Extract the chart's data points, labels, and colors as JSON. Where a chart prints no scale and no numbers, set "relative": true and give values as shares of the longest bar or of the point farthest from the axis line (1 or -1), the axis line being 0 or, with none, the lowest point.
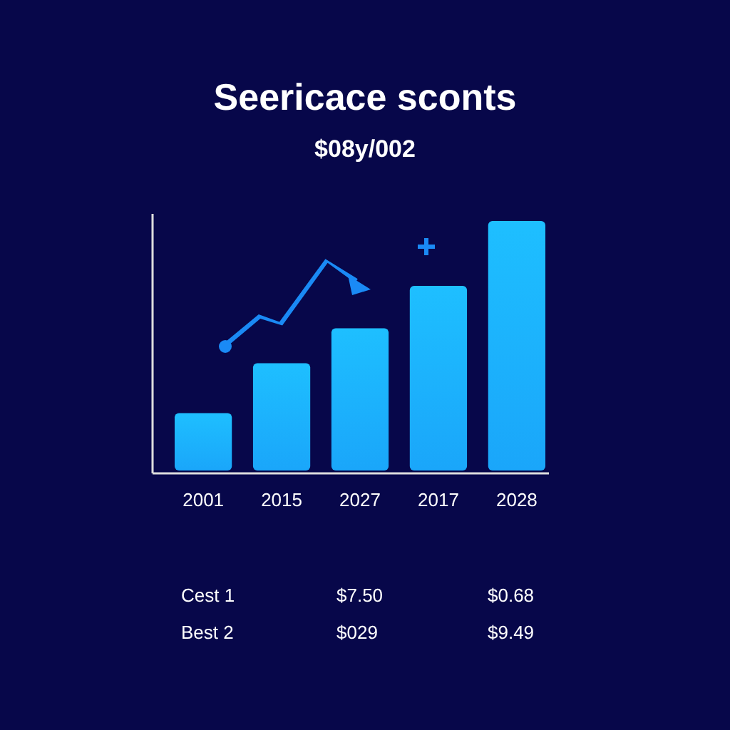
{
  "chart_data": {
    "type": "bar",
    "title": "Seericace sconts",
    "subtitle": "$08y/002",
    "categories": [
      "2001",
      "2015",
      "2027",
      "2017",
      "2028"
    ],
    "values": [
      0.23,
      0.43,
      0.57,
      0.74,
      1
    ],
    "color": "#1aa6fa",
    "relative": true,
    "grid": false,
    "annotations": [
      "Cest 1",
      "$7.50",
      "$0.68",
      "Best 2",
      "$029",
      "$9.49"
    ]
  }
}
